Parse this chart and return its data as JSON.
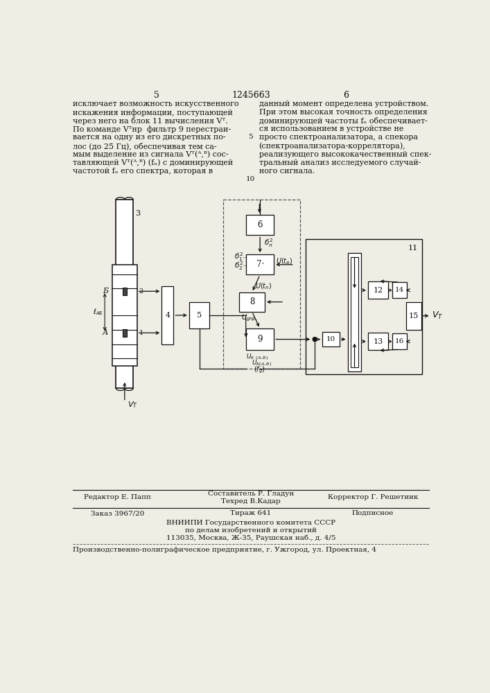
{
  "bg_color": "#f0ede4",
  "page_number_left": "5",
  "page_number_center": "1245663",
  "page_number_right": "6",
  "col1_lines": [
    "исключает возможность искусственного",
    "искажения информации, поступающей",
    "через него на блок 11 вычисления Vᵀ.",
    "По команде Vᵀнр  фильтр 9 перестраи-",
    "вается на одну из его дискретных по-",
    "лос (до 25 Гц), обеспечивая тем са-",
    "мым выделение из сигнала Vᵀ(ᴬ,ᴮ) сос-",
    "тавляющей Vᵀ(ᴬ,ᴮ) (fₙ) с доминирующей",
    "частотой fₙ его спектра, которая в"
  ],
  "col2_lines": [
    "данный момент определена устройством.",
    "При этом высокая точность определения",
    "доминирующей частоты fₙ обеспечивает-",
    "ся использованием в устройстве не",
    "просто спектроанализатора, а спекора",
    "(спектроанализатора-коррелятора),",
    "реализующего высококачественный спек-",
    "тральный анализ исследуемого случай-",
    "ного сигнала."
  ],
  "footer_editor": "Редактор Е. Папп",
  "footer_composer": "Составитель Р. Гладун",
  "footer_tech": "Техред В.Кадар",
  "footer_corrector": "Корректор Г. Решетник",
  "footer_order": "Заказ 3967/20",
  "footer_copies": "Тираж 641",
  "footer_signed": "Подписное",
  "footer_org1": "ВНИИПИ Государственного комитета СССР",
  "footer_org2": "по делам изобретений и открытий",
  "footer_org3": "113035, Москва, Ж-35, Раушская наб., д. 4/5",
  "footer_factory": "Производственно-полиграфическое предприятие, г. Ужгород, ул. Проектная, 4"
}
